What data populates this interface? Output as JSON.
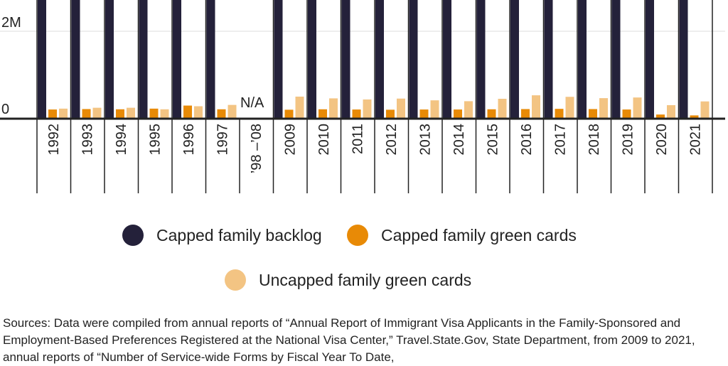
{
  "chart_data": {
    "type": "bar",
    "categories": [
      "1992",
      "1993",
      "1994",
      "1995",
      "1996",
      "1997",
      "’98 –’08",
      "2009",
      "2010",
      "2011",
      "2012",
      "2013",
      "2014",
      "2015",
      "2016",
      "2017",
      "2018",
      "2019",
      "2020",
      "2021"
    ],
    "series": [
      {
        "name": "Capped family backlog",
        "color": "#24213a",
        "values": [
          null,
          null,
          null,
          null,
          null,
          null,
          null,
          null,
          null,
          null,
          null,
          null,
          null,
          null,
          null,
          null,
          null,
          null,
          null,
          null
        ],
        "note_values_exceed_visible_axis": true
      },
      {
        "name": "Capped family green cards",
        "color": "#e88a06",
        "values": [
          210000,
          220000,
          215000,
          230000,
          300000,
          215000,
          null,
          205000,
          215000,
          210000,
          205000,
          210000,
          210000,
          215000,
          220000,
          225000,
          220000,
          210000,
          95000,
          75000
        ]
      },
      {
        "name": "Uncapped family green cards",
        "color": "#f3c483",
        "values": [
          230000,
          250000,
          250000,
          215000,
          285000,
          315000,
          null,
          505000,
          465000,
          440000,
          460000,
          420000,
          400000,
          455000,
          535000,
          500000,
          470000,
          485000,
          310000,
          395000
        ]
      }
    ],
    "gap_label": "N/A",
    "ytick_labels": [
      "0",
      "2M"
    ],
    "ylim": [
      0,
      2000000
    ]
  },
  "legend": {
    "items": [
      {
        "label": "Capped family backlog",
        "color": "#24213a"
      },
      {
        "label": "Capped family green cards",
        "color": "#e88a06"
      },
      {
        "label": "Uncapped family green cards",
        "color": "#f3c483"
      }
    ]
  },
  "sources": "Sources: Data were compiled from annual reports of “Annual Report of Immigrant Visa Applicants in the Family-Sponsored and Employment-Based Preferences Registered at the National Visa Center,” Travel.State.Gov, State Department, from 2009 to 2021, annual reports of “Number of Service-wide Forms by Fiscal Year To Date,"
}
